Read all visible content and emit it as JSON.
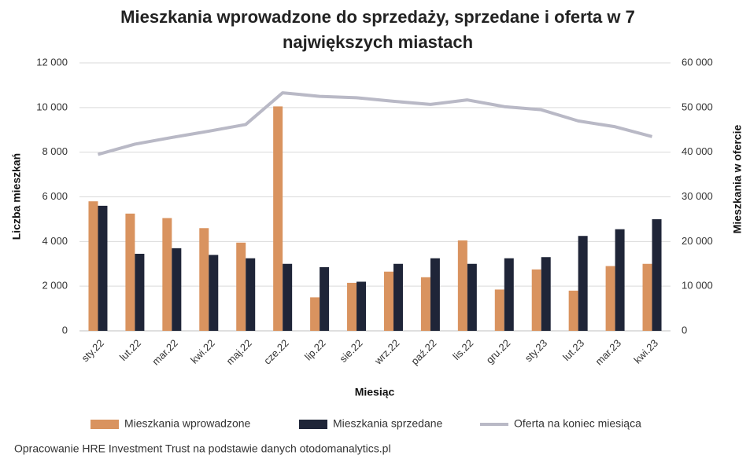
{
  "chart_data": {
    "type": "bar-line",
    "title": "Mieszkania wprowadzone do sprzedaży, sprzedane i oferta w 7 największych miastach",
    "x_label": "Miesiąc",
    "y_label": "Liczba mieszkań",
    "y2_label": "Mieszkania w ofercie",
    "source": "Opracowanie HRE Investment Trust na podstawie danych otodomanalytics.pl",
    "categories": [
      "sty.22",
      "lut.22",
      "mar.22",
      "kwi.22",
      "maj.22",
      "cze.22",
      "lip.22",
      "sie.22",
      "wrz.22",
      "paź.22",
      "lis.22",
      "gru.22",
      "sty.23",
      "lut.23",
      "mar.23",
      "kwi.23"
    ],
    "series": [
      {
        "name": "Mieszkania wprowadzone",
        "type": "bar",
        "color": "#d9935f",
        "values": [
          5800,
          5250,
          5050,
          4600,
          3950,
          10050,
          1500,
          2150,
          2650,
          2400,
          4050,
          1850,
          2750,
          1800,
          2900,
          3000
        ]
      },
      {
        "name": "Mieszkania sprzedane",
        "type": "bar",
        "color": "#1f2538",
        "values": [
          5600,
          3450,
          3700,
          3400,
          3250,
          3000,
          2850,
          2200,
          3000,
          3250,
          3000,
          3250,
          3300,
          4250,
          4550,
          5000
        ]
      },
      {
        "name": "Oferta na koniec miesiąca",
        "type": "line",
        "axis": "y2",
        "color": "#b9b9c6",
        "values": [
          39500,
          41800,
          43300,
          44700,
          46200,
          53300,
          52500,
          52200,
          51400,
          50700,
          51700,
          50200,
          49500,
          47000,
          45700,
          43500
        ]
      }
    ],
    "ylim": [
      0,
      12000
    ],
    "yticks": [
      0,
      {
        "value": 2000,
        "label": "2 000"
      },
      {
        "value": 4000,
        "label": "4 000"
      },
      {
        "value": 6000,
        "label": "6 000"
      },
      {
        "value": 8000,
        "label": "8 000"
      },
      {
        "value": 10000,
        "label": "10 000"
      },
      {
        "value": 12000,
        "label": "12 000"
      }
    ],
    "y2lim": [
      0,
      60000
    ],
    "y2ticks": [
      0,
      {
        "value": 10000,
        "label": "10 000"
      },
      {
        "value": 20000,
        "label": "20 000"
      },
      {
        "value": 30000,
        "label": "30 000"
      },
      {
        "value": 40000,
        "label": "40 000"
      },
      {
        "value": 50000,
        "label": "50 000"
      },
      {
        "value": 60000,
        "label": "60 000"
      }
    ],
    "grid": true,
    "legend": "bottom"
  }
}
